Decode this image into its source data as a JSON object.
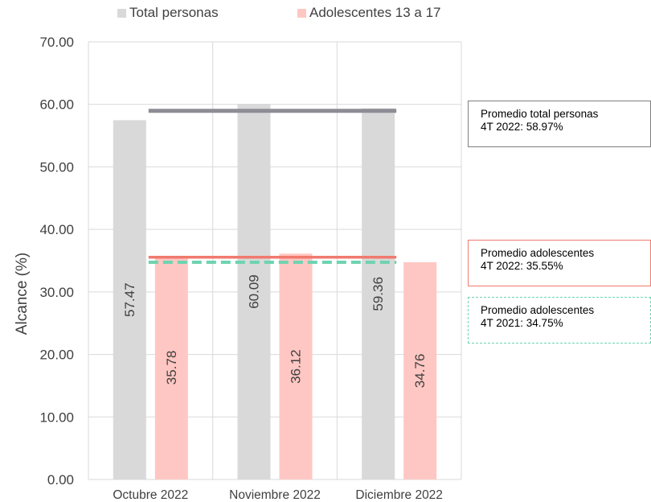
{
  "chart_data": {
    "type": "bar",
    "categories": [
      "Octubre 2022",
      "Noviembre 2022",
      "Diciembre 2022"
    ],
    "series": [
      {
        "name": "Total personas",
        "values": [
          57.47,
          60.09,
          59.36
        ],
        "color": "#d9d9d9",
        "labels": [
          "57.47",
          "60.09",
          "59.36"
        ]
      },
      {
        "name": "Adolescentes 13 a 17",
        "values": [
          35.78,
          36.12,
          34.76
        ],
        "color": "#ffc7c3",
        "labels": [
          "35.78",
          "36.12",
          "34.76"
        ]
      }
    ],
    "ylabel": "Alcance (%)",
    "ylim": [
      0,
      70
    ],
    "yticks": [
      "0.00",
      "10.00",
      "20.00",
      "30.00",
      "40.00",
      "50.00",
      "60.00",
      "70.00"
    ],
    "grid": true,
    "legend_position": "top",
    "reference_lines": [
      {
        "value": 58.97,
        "color": "#8e8c94",
        "style": "solid"
      },
      {
        "value": 35.55,
        "color": "#f07a6e",
        "style": "solid"
      },
      {
        "value": 34.75,
        "color": "#6fd3b0",
        "style": "dashed"
      }
    ],
    "annotations": [
      {
        "line1": "Promedio total personas",
        "line2": "4T 2022: 58.97%"
      },
      {
        "line1": "Promedio adolescentes",
        "line2": "4T 2022: 35.55%"
      },
      {
        "line1": "Promedio adolescentes",
        "line2": "4T 2021: 34.75%"
      }
    ]
  }
}
